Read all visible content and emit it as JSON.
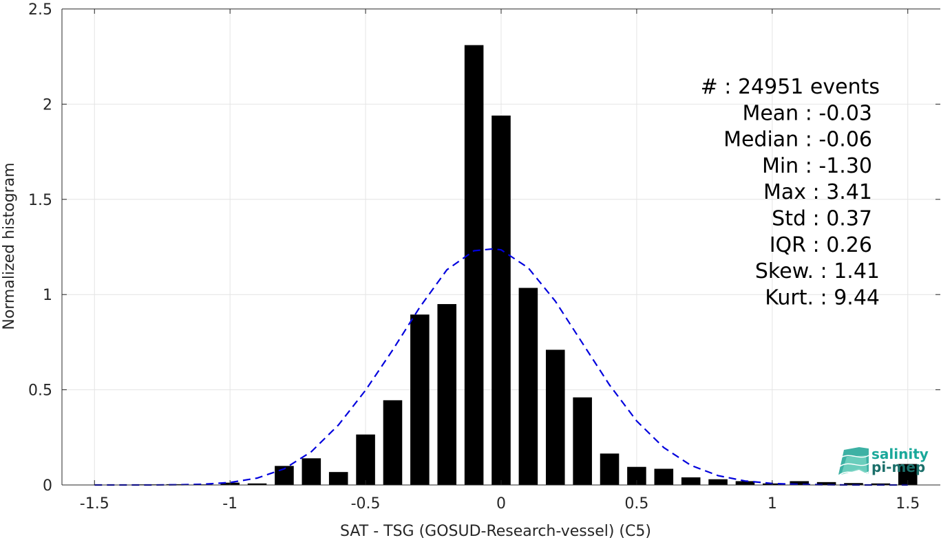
{
  "chart_data": {
    "type": "bar",
    "title": "",
    "xlabel": "SAT - TSG (GOSUD-Research-vessel) (C5)",
    "ylabel": "Normalized histogram",
    "xlim": [
      -1.62,
      1.62
    ],
    "ylim": [
      0,
      2.5
    ],
    "grid": true,
    "x_ticks": [
      -1.5,
      -1,
      -0.5,
      0,
      0.5,
      1,
      1.5
    ],
    "x_tick_labels": [
      "-1.5",
      "-1",
      "-0.5",
      "0",
      "0.5",
      "1",
      "1.5"
    ],
    "y_ticks": [
      0,
      0.5,
      1,
      1.5,
      2,
      2.5
    ],
    "y_tick_labels": [
      "0",
      "0.5",
      "1",
      "1.5",
      "2",
      "2.5"
    ],
    "bar_color": "#000000",
    "bar_width": 0.07,
    "bars": {
      "x": [
        -1.3,
        -1.2,
        -1.1,
        -1.0,
        -0.9,
        -0.8,
        -0.7,
        -0.6,
        -0.5,
        -0.4,
        -0.3,
        -0.2,
        -0.1,
        0.0,
        0.1,
        0.2,
        0.3,
        0.4,
        0.5,
        0.6,
        0.7,
        0.8,
        0.9,
        1.0,
        1.1,
        1.2,
        1.3,
        1.4,
        1.5
      ],
      "values": [
        0.003,
        0.004,
        0.003,
        0.012,
        0.008,
        0.1,
        0.14,
        0.068,
        0.265,
        0.445,
        0.895,
        0.95,
        2.31,
        1.94,
        1.035,
        0.71,
        0.46,
        0.165,
        0.095,
        0.085,
        0.04,
        0.03,
        0.02,
        0.008,
        0.02,
        0.015,
        0.01,
        0.008,
        0.11
      ]
    },
    "fit_curve": {
      "style": "dashed",
      "color": "#0000dd",
      "x": [
        -1.5,
        -1.4,
        -1.3,
        -1.2,
        -1.1,
        -1.0,
        -0.9,
        -0.8,
        -0.7,
        -0.6,
        -0.5,
        -0.4,
        -0.3,
        -0.2,
        -0.1,
        -0.03,
        0.0,
        0.1,
        0.2,
        0.3,
        0.4,
        0.5,
        0.6,
        0.7,
        0.8,
        0.9,
        1.0,
        1.1,
        1.2,
        1.3,
        1.4,
        1.5
      ],
      "y": [
        0.0,
        0.0,
        0.0,
        0.001,
        0.004,
        0.013,
        0.036,
        0.085,
        0.175,
        0.315,
        0.498,
        0.709,
        0.934,
        1.13,
        1.23,
        1.24,
        1.235,
        1.14,
        0.965,
        0.745,
        0.525,
        0.336,
        0.196,
        0.103,
        0.049,
        0.021,
        0.008,
        0.003,
        0.001,
        0.0,
        0.0,
        0.0
      ]
    }
  },
  "stats": [
    "#  : 24951 events",
    "Mean : -0.03",
    "Median : -0.06",
    "Min : -1.30",
    "Max : 3.41",
    "Std : 0.37",
    "IQR : 0.26",
    "Skew. : 1.41",
    "Kurt. : 9.44"
  ],
  "logo": {
    "line1": "salinity",
    "line2": "pi-mep",
    "color1": "#1aa89a",
    "color2": "#1b6f6a"
  }
}
